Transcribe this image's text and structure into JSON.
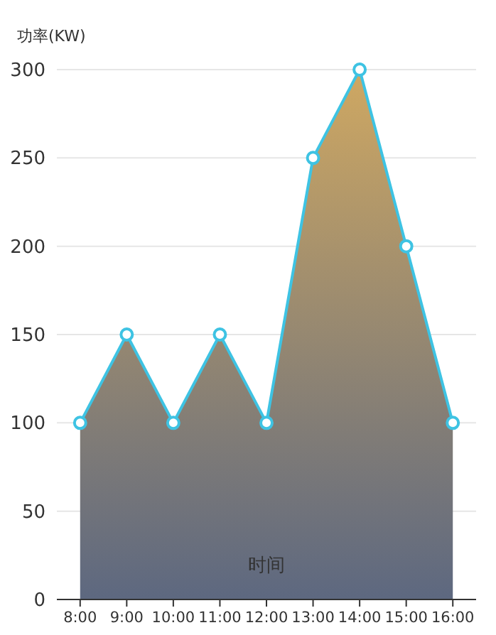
{
  "chart_data": {
    "type": "area",
    "ylabel": "功率(KW)",
    "xlabel": "时间",
    "categories": [
      "8:00",
      "9:00",
      "10:00",
      "11:00",
      "12:00",
      "13:00",
      "14:00",
      "15:00",
      "16:00"
    ],
    "series": [
      {
        "color": "#3ec3e3",
        "values": [
          100,
          150,
          100,
          150,
          100,
          250,
          300,
          200,
          100
        ]
      }
    ],
    "ylim": [
      0,
      300
    ],
    "yticks": [
      0,
      50,
      100,
      150,
      200,
      250,
      300
    ],
    "grid": "y",
    "marker": "circle"
  }
}
